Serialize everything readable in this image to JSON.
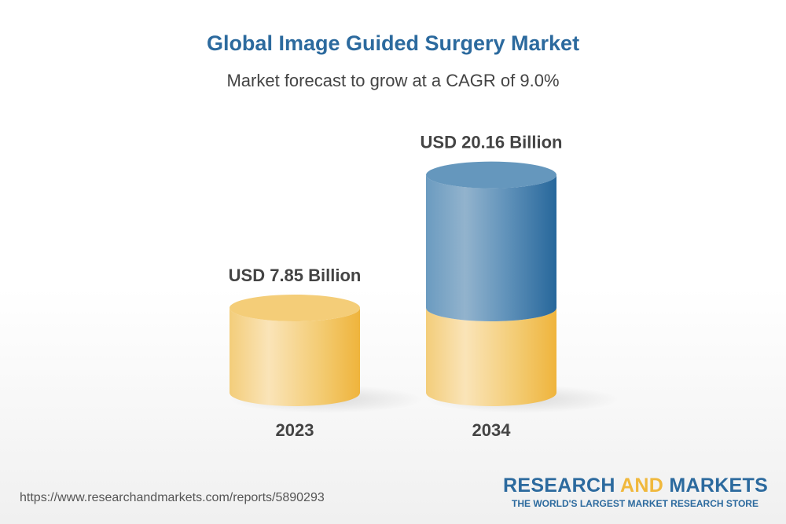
{
  "title": "Global Image Guided Surgery Market",
  "subtitle": "Market forecast to grow at a CAGR of 9.0%",
  "chart_data": {
    "type": "bar",
    "style": "3d-cylinder",
    "categories": [
      "2023",
      "2034"
    ],
    "values": [
      7.85,
      20.16
    ],
    "data_labels": [
      "USD 7.85 Billion",
      "USD 20.16 Billion"
    ],
    "unit": "USD Billion",
    "grid": false,
    "colors": {
      "base": "#f2c25a",
      "growth": "#2c6a9e"
    }
  },
  "footer": {
    "url": "https://www.researchandmarkets.com/reports/5890293",
    "logo": {
      "word1": "RESEARCH",
      "word2": "AND",
      "word3": "MARKETS",
      "tagline": "THE WORLD'S LARGEST MARKET RESEARCH STORE"
    }
  }
}
